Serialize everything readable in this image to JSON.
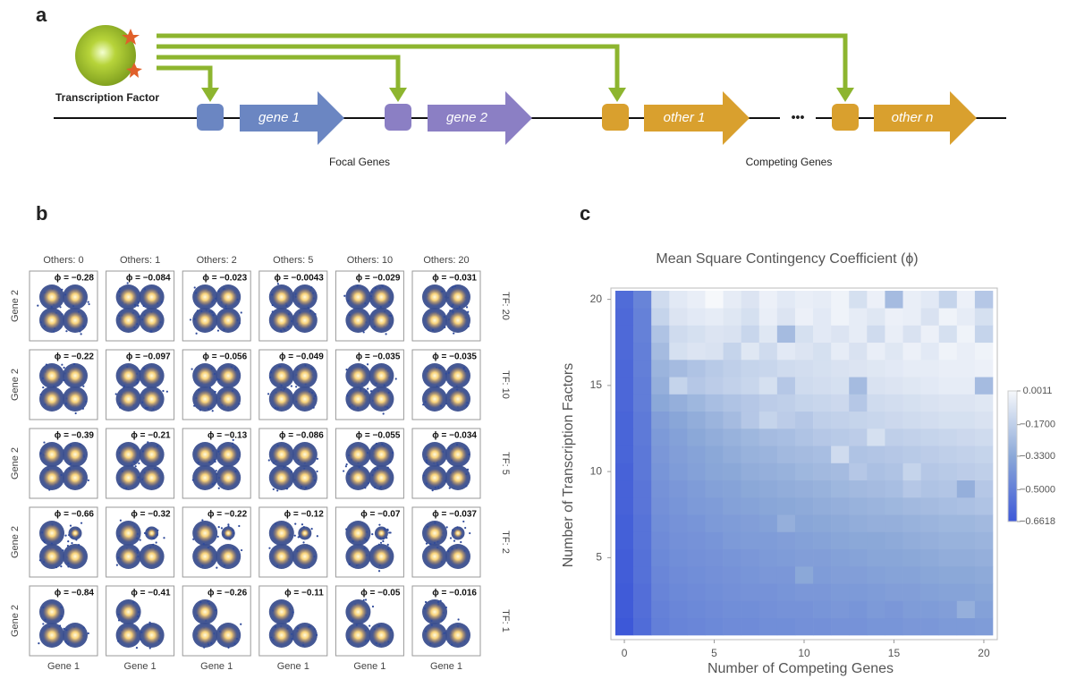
{
  "panel_a": {
    "label": "a",
    "transcription_factor": "Transcription Factor",
    "genes": [
      "gene 1",
      "gene 2",
      "other 1",
      "other n"
    ],
    "ellipsis": "•••",
    "focal_label": "Focal Genes",
    "competing_label": "Competing Genes"
  },
  "panel_b": {
    "label": "b",
    "column_headers": [
      "Others: 0",
      "Others: 1",
      "Others: 2",
      "Others: 5",
      "Others: 10",
      "Others: 20"
    ],
    "row_labels": [
      "TF: 20",
      "TF: 10",
      "TF: 5",
      "TF: 2",
      "TF: 1"
    ],
    "x_label": "Gene 1",
    "y_label": "Gene 2",
    "phi_labels": [
      [
        "ϕ = −0.28",
        "ϕ = −0.084",
        "ϕ = −0.023",
        "ϕ = −0.0043",
        "ϕ = −0.029",
        "ϕ = −0.031"
      ],
      [
        "ϕ = −0.22",
        "ϕ = −0.097",
        "ϕ = −0.056",
        "ϕ = −0.049",
        "ϕ = −0.035",
        "ϕ = −0.035"
      ],
      [
        "ϕ = −0.39",
        "ϕ = −0.21",
        "ϕ = −0.13",
        "ϕ = −0.086",
        "ϕ = −0.055",
        "ϕ = −0.034"
      ],
      [
        "ϕ = −0.66",
        "ϕ = −0.32",
        "ϕ = −0.22",
        "ϕ = −0.12",
        "ϕ = −0.07",
        "ϕ = −0.037"
      ],
      [
        "ϕ = −0.84",
        "ϕ = −0.41",
        "ϕ = −0.26",
        "ϕ = −0.11",
        "ϕ = −0.05",
        "ϕ = −0.016"
      ]
    ]
  },
  "panel_c": {
    "label": "c",
    "chart_data": {
      "type": "heatmap",
      "title": "Mean Square Contingency Coefficient (ϕ)",
      "x_label": "Number of Competing Genes",
      "y_label": "Number of Transcription Factors",
      "x": [
        0,
        1,
        2,
        3,
        4,
        5,
        6,
        7,
        8,
        9,
        10,
        11,
        12,
        13,
        14,
        15,
        16,
        17,
        18,
        19,
        20
      ],
      "y": [
        1,
        2,
        3,
        4,
        5,
        6,
        7,
        8,
        9,
        10,
        11,
        12,
        13,
        14,
        15,
        16,
        17,
        18,
        19,
        20
      ],
      "z": [
        [
          -0.66,
          -0.58,
          -0.5,
          -0.48,
          -0.47,
          -0.46,
          -0.45,
          -0.45,
          -0.44,
          -0.44,
          -0.43,
          -0.43,
          -0.42,
          -0.42,
          -0.41,
          -0.41,
          -0.4,
          -0.4,
          -0.39,
          -0.39,
          -0.38
        ],
        [
          -0.65,
          -0.57,
          -0.49,
          -0.47,
          -0.46,
          -0.45,
          -0.44,
          -0.44,
          -0.43,
          -0.42,
          -0.42,
          -0.41,
          -0.4,
          -0.41,
          -0.39,
          -0.4,
          -0.38,
          -0.38,
          -0.37,
          -0.3,
          -0.36
        ],
        [
          -0.65,
          -0.57,
          -0.48,
          -0.46,
          -0.45,
          -0.44,
          -0.43,
          -0.42,
          -0.42,
          -0.41,
          -0.4,
          -0.4,
          -0.39,
          -0.39,
          -0.38,
          -0.37,
          -0.37,
          -0.36,
          -0.35,
          -0.35,
          -0.34
        ],
        [
          -0.64,
          -0.56,
          -0.47,
          -0.45,
          -0.44,
          -0.43,
          -0.42,
          -0.41,
          -0.4,
          -0.4,
          -0.33,
          -0.38,
          -0.37,
          -0.37,
          -0.36,
          -0.35,
          -0.35,
          -0.34,
          -0.33,
          -0.33,
          -0.32
        ],
        [
          -0.64,
          -0.56,
          -0.46,
          -0.44,
          -0.43,
          -0.42,
          -0.41,
          -0.4,
          -0.39,
          -0.38,
          -0.37,
          -0.37,
          -0.36,
          -0.35,
          -0.34,
          -0.34,
          -0.33,
          -0.32,
          -0.31,
          -0.31,
          -0.3
        ],
        [
          -0.63,
          -0.55,
          -0.45,
          -0.43,
          -0.42,
          -0.41,
          -0.39,
          -0.38,
          -0.38,
          -0.37,
          -0.36,
          -0.35,
          -0.34,
          -0.33,
          -0.33,
          -0.32,
          -0.31,
          -0.3,
          -0.29,
          -0.29,
          -0.28
        ],
        [
          -0.63,
          -0.55,
          -0.44,
          -0.42,
          -0.41,
          -0.39,
          -0.38,
          -0.37,
          -0.36,
          -0.3,
          -0.34,
          -0.33,
          -0.32,
          -0.31,
          -0.3,
          -0.3,
          -0.29,
          -0.28,
          -0.27,
          -0.27,
          -0.26
        ],
        [
          -0.62,
          -0.54,
          -0.43,
          -0.41,
          -0.39,
          -0.38,
          -0.36,
          -0.35,
          -0.34,
          -0.33,
          -0.32,
          -0.31,
          -0.3,
          -0.29,
          -0.28,
          -0.27,
          -0.26,
          -0.25,
          -0.24,
          -0.23,
          -0.22
        ],
        [
          -0.62,
          -0.54,
          -0.42,
          -0.4,
          -0.38,
          -0.36,
          -0.35,
          -0.33,
          -0.32,
          -0.31,
          -0.3,
          -0.29,
          -0.27,
          -0.26,
          -0.25,
          -0.24,
          -0.2,
          -0.22,
          -0.21,
          -0.3,
          -0.2
        ],
        [
          -0.62,
          -0.53,
          -0.41,
          -0.38,
          -0.36,
          -0.34,
          -0.33,
          -0.31,
          -0.3,
          -0.29,
          -0.27,
          -0.26,
          -0.25,
          -0.2,
          -0.23,
          -0.22,
          -0.15,
          -0.2,
          -0.19,
          -0.18,
          -0.17
        ],
        [
          -0.61,
          -0.53,
          -0.4,
          -0.37,
          -0.35,
          -0.33,
          -0.31,
          -0.29,
          -0.28,
          -0.26,
          -0.25,
          -0.24,
          -0.12,
          -0.22,
          -0.21,
          -0.2,
          -0.19,
          -0.18,
          -0.17,
          -0.16,
          -0.15
        ],
        [
          -0.61,
          -0.52,
          -0.39,
          -0.36,
          -0.33,
          -0.31,
          -0.29,
          -0.27,
          -0.25,
          -0.24,
          -0.22,
          -0.2,
          -0.19,
          -0.18,
          -0.1,
          -0.17,
          -0.16,
          -0.15,
          -0.14,
          -0.13,
          -0.12
        ],
        [
          -0.61,
          -0.52,
          -0.37,
          -0.34,
          -0.31,
          -0.28,
          -0.25,
          -0.2,
          -0.15,
          -0.18,
          -0.2,
          -0.17,
          -0.16,
          -0.15,
          -0.14,
          -0.13,
          -0.12,
          -0.11,
          -0.1,
          -0.1,
          -0.09
        ],
        [
          -0.6,
          -0.51,
          -0.33,
          -0.3,
          -0.27,
          -0.24,
          -0.22,
          -0.2,
          -0.18,
          -0.17,
          -0.15,
          -0.14,
          -0.13,
          -0.2,
          -0.12,
          -0.11,
          -0.1,
          -0.09,
          -0.08,
          -0.08,
          -0.07
        ],
        [
          -0.6,
          -0.51,
          -0.3,
          -0.15,
          -0.2,
          -0.18,
          -0.16,
          -0.14,
          -0.1,
          -0.2,
          -0.12,
          -0.11,
          -0.1,
          -0.25,
          -0.09,
          -0.08,
          -0.07,
          -0.06,
          -0.05,
          -0.05,
          -0.25
        ],
        [
          -0.6,
          -0.5,
          -0.28,
          -0.25,
          -0.22,
          -0.19,
          -0.17,
          -0.15,
          -0.14,
          -0.12,
          -0.11,
          -0.1,
          -0.09,
          -0.08,
          -0.07,
          -0.06,
          -0.05,
          -0.05,
          -0.04,
          -0.04,
          -0.03
        ],
        [
          -0.59,
          -0.5,
          -0.25,
          -0.1,
          -0.08,
          -0.09,
          -0.15,
          -0.07,
          -0.12,
          -0.06,
          -0.08,
          -0.1,
          -0.05,
          -0.09,
          -0.04,
          -0.07,
          -0.03,
          -0.06,
          -0.02,
          -0.04,
          -0.02
        ],
        [
          -0.59,
          -0.49,
          -0.22,
          -0.12,
          -0.1,
          -0.08,
          -0.09,
          -0.14,
          -0.07,
          -0.25,
          -0.1,
          -0.06,
          -0.08,
          -0.05,
          -0.12,
          -0.04,
          -0.09,
          -0.03,
          -0.1,
          -0.02,
          -0.15
        ],
        [
          -0.59,
          -0.49,
          -0.15,
          -0.08,
          -0.06,
          -0.05,
          -0.07,
          -0.1,
          -0.04,
          -0.08,
          -0.03,
          -0.06,
          -0.02,
          -0.05,
          -0.07,
          -0.03,
          -0.04,
          -0.09,
          -0.02,
          -0.05,
          -0.1
        ],
        [
          -0.58,
          -0.48,
          -0.12,
          -0.06,
          -0.04,
          0.0,
          -0.05,
          -0.08,
          -0.03,
          -0.06,
          -0.04,
          -0.05,
          -0.02,
          -0.1,
          -0.03,
          -0.25,
          -0.04,
          -0.06,
          -0.15,
          -0.03,
          -0.2
        ]
      ],
      "xlim": [
        -0.5,
        20.5
      ],
      "ylim": [
        0.5,
        20.5
      ],
      "xticks": [
        0,
        5,
        10,
        15,
        20
      ],
      "yticks": [
        5,
        10,
        15,
        20
      ],
      "zlim": [
        -0.6618,
        0.0011
      ],
      "colorbar_ticks": [
        {
          "value": 0.0011,
          "label": "0.0011"
        },
        {
          "value": -0.17,
          "label": "−0.1700"
        },
        {
          "value": -0.33,
          "label": "−0.3300"
        },
        {
          "value": -0.5,
          "label": "−0.5000"
        },
        {
          "value": -0.6618,
          "label": "−0.6618"
        }
      ],
      "colormap": [
        "#3d58d8",
        "#8ba8d8",
        "#f6f8fb"
      ]
    }
  }
}
